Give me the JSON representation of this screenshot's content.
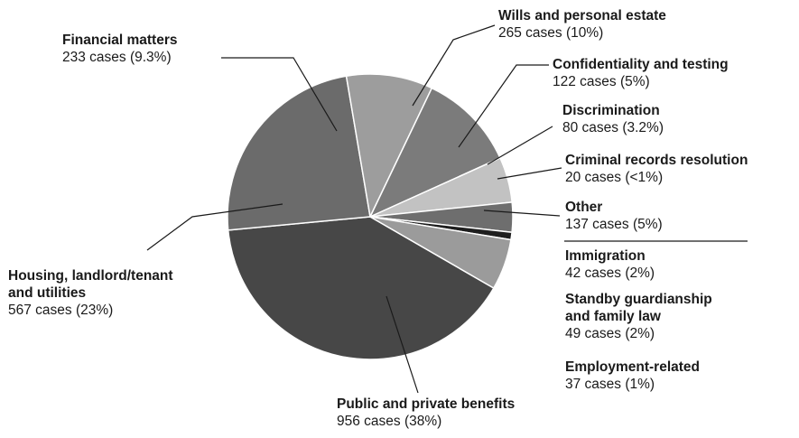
{
  "chart_data": {
    "type": "pie",
    "slices": [
      {
        "label": "Public and private benefits",
        "value": 956,
        "value_text": "956 cases (38%)",
        "color": "#474747"
      },
      {
        "label": "Housing, landlord/tenant and utilities",
        "value": 567,
        "value_text": "567 cases (23%)",
        "color": "#6b6b6b"
      },
      {
        "label": "Financial matters",
        "value": 233,
        "value_text": "233 cases (9.3%)",
        "color": "#9d9d9d"
      },
      {
        "label": "Wills and personal estate",
        "value": 265,
        "value_text": "265 cases (10%)",
        "color": "#7b7b7b"
      },
      {
        "label": "Confidentiality and testing",
        "value": 122,
        "value_text": "122 cases (5%)",
        "color": "#c2c2c2"
      },
      {
        "label": "Discrimination",
        "value": 80,
        "value_text": "80 cases (3.2%)",
        "color": "#6e6e6e"
      },
      {
        "label": "Criminal records resolution",
        "value": 20,
        "value_text": "20 cases (<1%)",
        "color": "#1e1e1e"
      },
      {
        "label": "Other",
        "value": 137,
        "value_text": "137 cases (5%)",
        "color": "#9b9b9b"
      }
    ],
    "other_breakdown": [
      {
        "label": "Immigration",
        "value": 42,
        "value_text": "42 cases (2%)"
      },
      {
        "label": "Standby guardianship and family law",
        "value": 49,
        "value_text": "49 cases (2%)"
      },
      {
        "label": "Employment-related",
        "value": 37,
        "value_text": "37 cases (1%)"
      }
    ]
  }
}
